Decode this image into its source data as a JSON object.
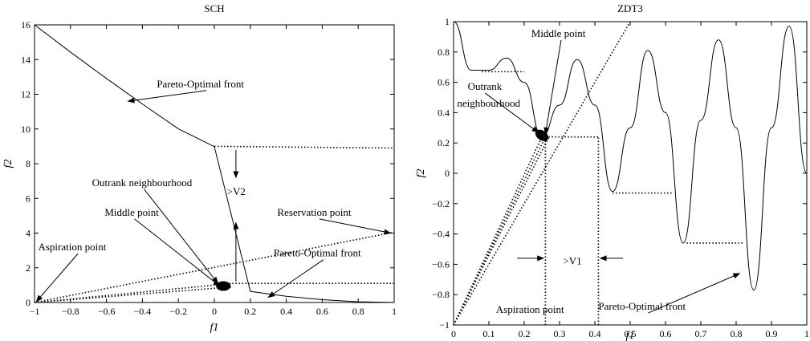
{
  "chart_data": [
    {
      "type": "line",
      "title": "SCH",
      "xlabel": "f1",
      "ylabel": "f2",
      "xlim": [
        -1,
        1
      ],
      "ylim": [
        0,
        16
      ],
      "xticks": [
        -1,
        -0.8,
        -0.6,
        -0.4,
        -0.2,
        0,
        0.2,
        0.4,
        0.6,
        0.8,
        1
      ],
      "yticks": [
        0,
        2,
        4,
        6,
        8,
        10,
        12,
        14,
        16
      ],
      "grid": false,
      "series": [
        {
          "style": "solid",
          "x": [
            -1,
            -0.8,
            -0.6,
            -0.4,
            -0.2,
            0,
            0.2,
            0.4,
            0.6,
            0.8,
            1
          ],
          "y": [
            16,
            14.43,
            12.91,
            11.44,
            10.01,
            8.98,
            0.64,
            0.36,
            0.16,
            0.04,
            0
          ]
        },
        {
          "style": "dotted",
          "x": [
            0,
            1
          ],
          "y": [
            9,
            8.9
          ]
        },
        {
          "style": "dotted",
          "x": [
            -1,
            1
          ],
          "y": [
            0,
            4.05
          ]
        },
        {
          "style": "dotted",
          "x": [
            -1,
            0.1
          ],
          "y": [
            0,
            1.1
          ]
        },
        {
          "style": "dotted",
          "x": [
            -1,
            0.1
          ],
          "y": [
            0,
            0.9
          ]
        },
        {
          "style": "dotted",
          "x": [
            0.1,
            1
          ],
          "y": [
            1.1,
            1.1
          ]
        }
      ],
      "cluster": {
        "x": 0.05,
        "y": 0.95
      },
      "annotations": [
        {
          "text": "Pareto-Optimal front",
          "tx": -0.32,
          "ty": 12.4,
          "ax": -0.48,
          "ay": 11.6
        },
        {
          "text": "Outrank neighbourhood",
          "tx": -0.68,
          "ty": 6.7,
          "ax": 0.02,
          "ay": 1.1
        },
        {
          "text": "Middle point",
          "tx": -0.61,
          "ty": 5.0,
          "ax": 0.03,
          "ay": 0.95
        },
        {
          "text": "Aspiration point",
          "tx": -0.98,
          "ty": 3.0,
          "ax": -0.99,
          "ay": 0.05
        },
        {
          "text": "Reservation point",
          "tx": 0.35,
          "ty": 5.0,
          "ax": 0.98,
          "ay": 4.0
        },
        {
          "text": "Pareto-Optimal front",
          "tx": 0.33,
          "ty": 2.65,
          "ax": 0.3,
          "ay": 0.3
        },
        {
          "text": ">V2",
          "tx": 0.07,
          "ty": 6.2
        }
      ]
    },
    {
      "type": "line",
      "title": "ZDT3",
      "xlabel": "f1",
      "ylabel": "f2",
      "xlim": [
        0,
        1
      ],
      "ylim": [
        -1,
        1
      ],
      "xticks": [
        0,
        0.1,
        0.2,
        0.3,
        0.4,
        0.5,
        0.6,
        0.7,
        0.8,
        0.9,
        1
      ],
      "yticks": [
        -1,
        -0.8,
        -0.6,
        -0.4,
        -0.2,
        0,
        0.2,
        0.4,
        0.6,
        0.8,
        1
      ],
      "grid": false,
      "series": [
        {
          "style": "solid",
          "x": [
            0,
            0.05,
            0.1,
            0.15,
            0.2,
            0.25,
            0.3,
            0.35,
            0.4,
            0.45,
            0.5,
            0.55,
            0.6,
            0.65,
            0.7,
            0.75,
            0.8,
            0.85,
            0.9,
            0.95,
            1
          ],
          "y": [
            1,
            0.68,
            0.68,
            0.76,
            0.6,
            0.24,
            0.45,
            0.75,
            0.45,
            -0.12,
            0.3,
            0.81,
            0.4,
            -0.46,
            0.35,
            0.88,
            0.3,
            -0.77,
            0.3,
            0.97,
            0
          ]
        },
        {
          "style": "dotted",
          "x": [
            0.08,
            0.2
          ],
          "y": [
            0.67,
            0.67
          ]
        },
        {
          "style": "dotted",
          "x": [
            0.26,
            0.41
          ],
          "y": [
            0.24,
            0.24
          ]
        },
        {
          "style": "dotted",
          "x": [
            0.45,
            0.62
          ],
          "y": [
            -0.13,
            -0.13
          ]
        },
        {
          "style": "dotted",
          "x": [
            0.66,
            0.82
          ],
          "y": [
            -0.46,
            -0.46
          ]
        },
        {
          "style": "dotted",
          "x": [
            0,
            0.5
          ],
          "y": [
            -1,
            1
          ]
        },
        {
          "style": "dotted",
          "x": [
            0,
            0.25
          ],
          "y": [
            -1,
            0.24
          ]
        },
        {
          "style": "dotted",
          "x": [
            0,
            0.26
          ],
          "y": [
            -1,
            0.24
          ]
        },
        {
          "style": "dotted",
          "x": [
            0,
            0.27
          ],
          "y": [
            -1,
            0.24
          ]
        },
        {
          "style": "dotted",
          "x": [
            0.26,
            0.26
          ],
          "y": [
            -1,
            0.24
          ]
        },
        {
          "style": "dotted",
          "x": [
            0.41,
            0.41
          ],
          "y": [
            -1,
            0.24
          ]
        }
      ],
      "cluster": {
        "x": 0.25,
        "y": 0.25
      },
      "annotations": [
        {
          "text": "Middle point",
          "tx": 0.22,
          "ty": 0.9,
          "ax": 0.26,
          "ay": 0.26
        },
        {
          "text": "Outrank",
          "tx": 0.04,
          "ty": 0.55,
          "ax": 0.24,
          "ay": 0.27
        },
        {
          "text": "neighbourhood",
          "tx": 0.01,
          "ty": 0.44
        },
        {
          "text": ">V1",
          "tx": 0.31,
          "ty": -0.6
        },
        {
          "text": "Aspiration point",
          "tx": 0.12,
          "ty": -0.92
        },
        {
          "text": "Pareto-Optimal front",
          "tx": 0.41,
          "ty": -0.9,
          "ax": 0.81,
          "ay": -0.66
        }
      ]
    }
  ]
}
